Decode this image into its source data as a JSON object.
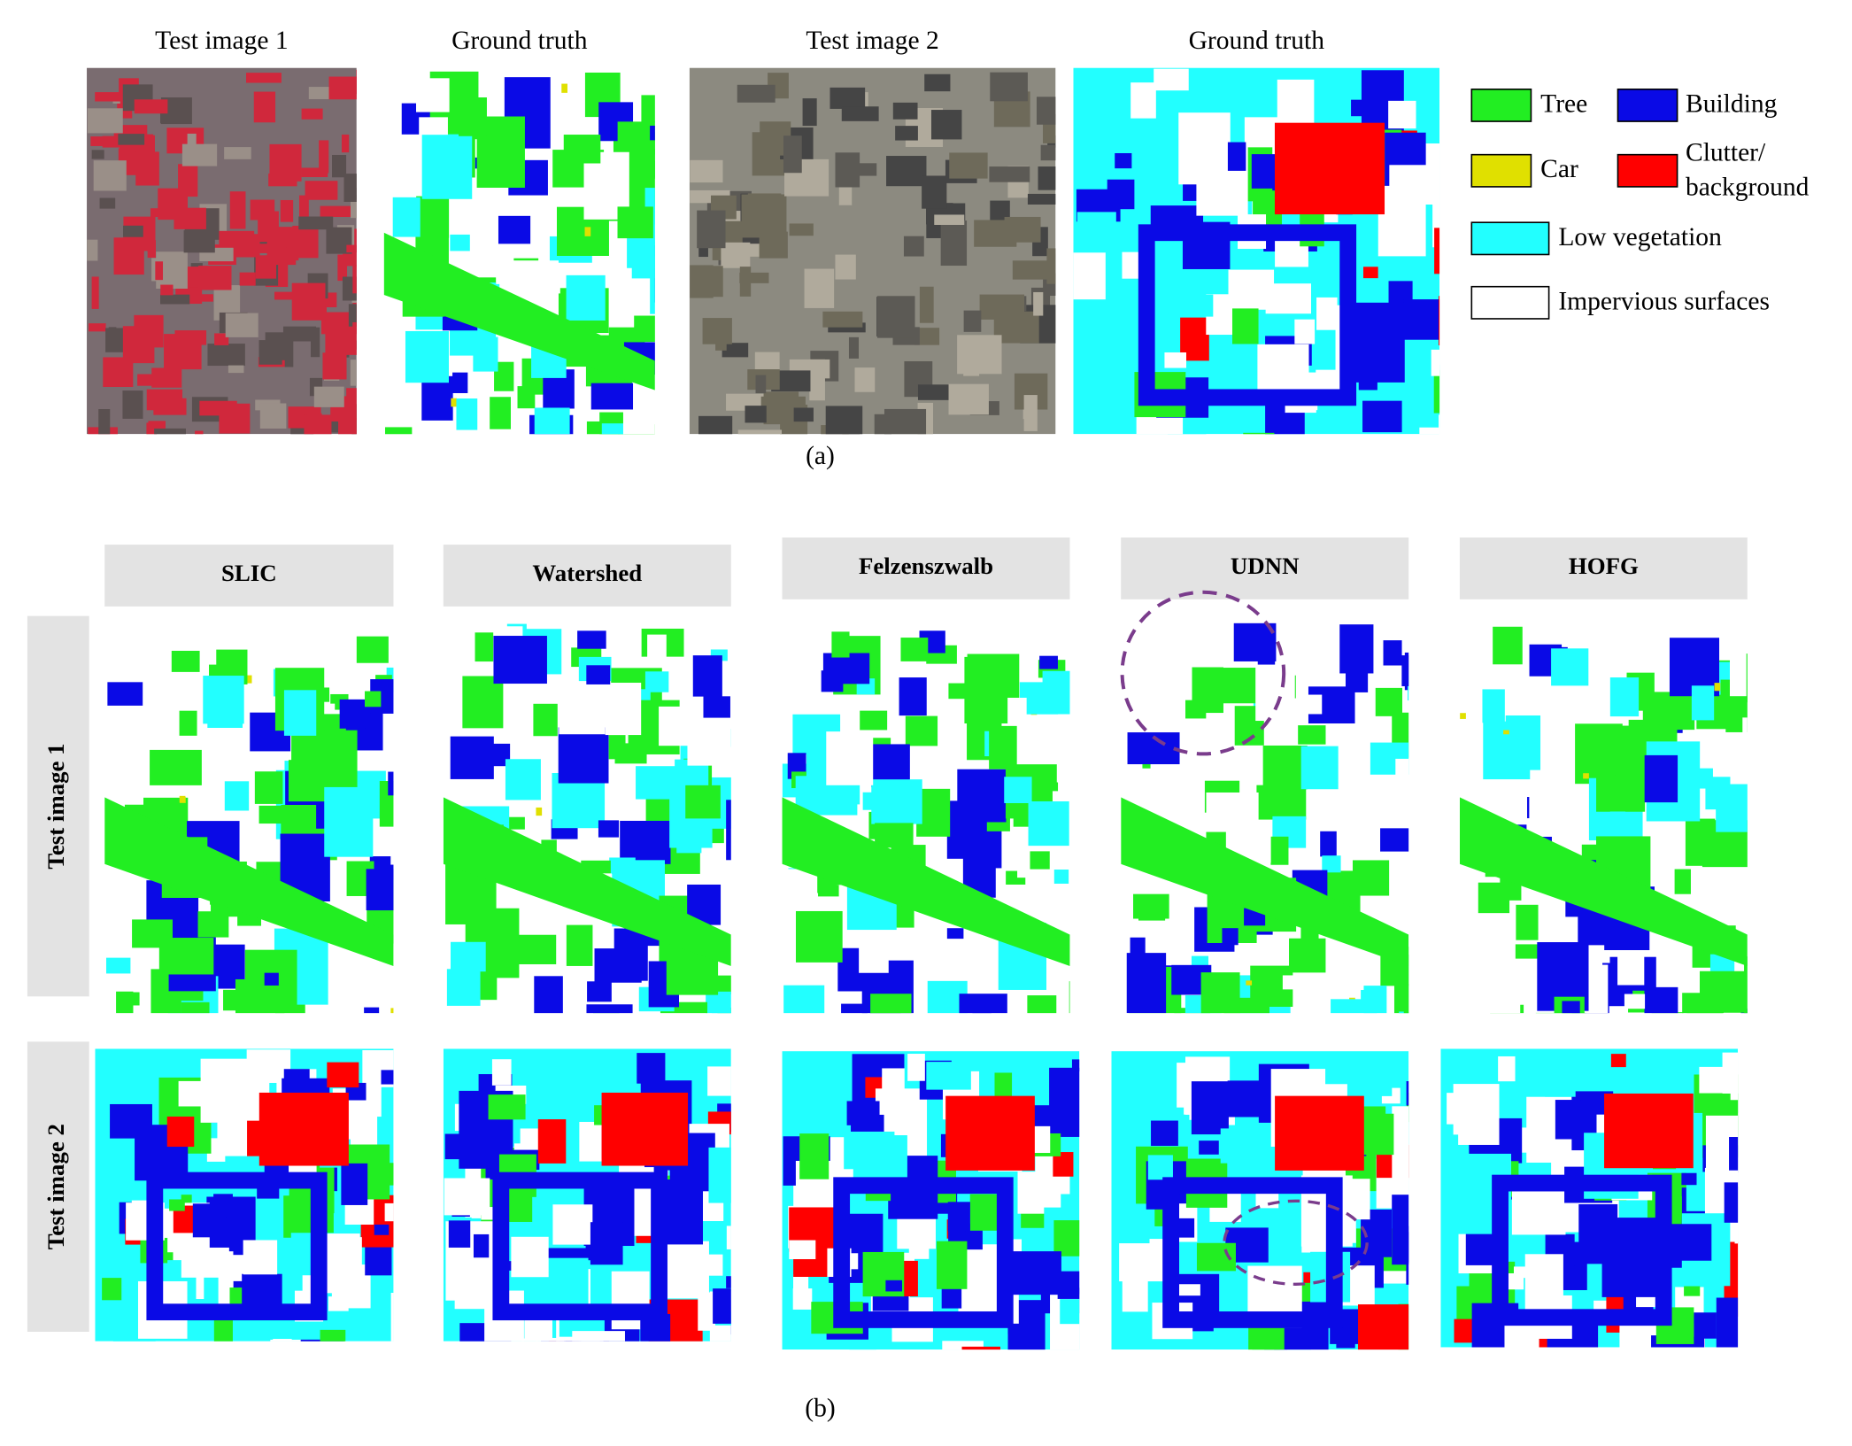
{
  "panel_a": {
    "titles": [
      "Test image 1",
      "Ground truth",
      "Test image 2",
      "Ground truth"
    ],
    "caption": "(a)"
  },
  "legend": [
    {
      "lines": [
        "Tree"
      ],
      "color": "#22ee22"
    },
    {
      "lines": [
        "Building"
      ],
      "color": "#0a0ae6"
    },
    {
      "lines": [
        "Car"
      ],
      "color": "#e0e000"
    },
    {
      "lines": [
        "Clutter/",
        "background"
      ],
      "color": "#ff0000"
    },
    {
      "lines": [
        "Low vegetation"
      ],
      "color": "#22ffff"
    },
    {
      "lines": [
        "Impervious surfaces"
      ],
      "color": "#ffffff"
    }
  ],
  "panel_b": {
    "methods": [
      "SLIC",
      "Watershed",
      "Felzenszwalb",
      "UDNN",
      "HOFG"
    ],
    "rows": [
      "Test image 1",
      "Test image 2"
    ],
    "caption": "(b)"
  }
}
